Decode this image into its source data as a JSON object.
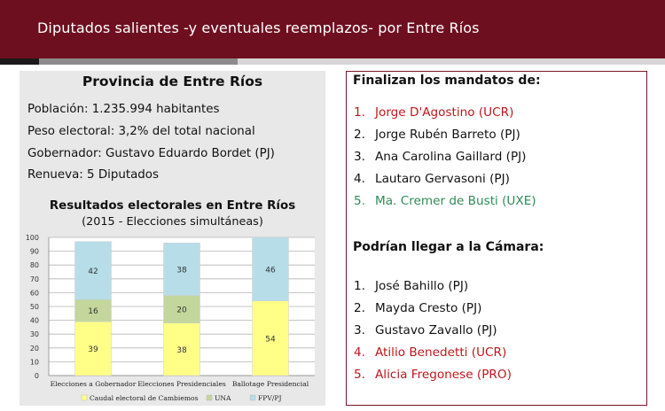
{
  "header": {
    "title": "Diputados salientes -y eventuales reemplazos- por Entre Ríos",
    "bg_color": "#6e0f1f"
  },
  "province": {
    "title": "Provincia de Entre Ríos",
    "lines": [
      "Población: 1.235.994 habitantes",
      "Peso electoral: 3,2% del total nacional",
      "Gobernador: Gustavo Eduardo Bordet (PJ)",
      "Renueva: 5 Diputados"
    ]
  },
  "chart_data": {
    "type": "bar",
    "stacked": true,
    "title": "Resultados electorales en Entre Ríos",
    "subtitle": "(2015 - Elecciones simultáneas)",
    "categories": [
      "Elecciones a Gobernador",
      "Elecciones Presidenciales",
      "Ballotage Presidencial"
    ],
    "series": [
      {
        "name": "Caudal electoral de Cambiemos",
        "values": [
          39,
          38,
          54
        ],
        "color": "#ffff88"
      },
      {
        "name": "UNA",
        "values": [
          16,
          20,
          0
        ],
        "color": "#c3d69b"
      },
      {
        "name": "FPV/PJ",
        "values": [
          42,
          38,
          46
        ],
        "color": "#b7dde8"
      }
    ],
    "data_labels": [
      [
        "39",
        "38",
        "54"
      ],
      [
        "16",
        "20",
        ""
      ],
      [
        "42",
        "38",
        "46"
      ]
    ],
    "ylim": [
      0,
      100
    ],
    "yticks": [
      "0",
      "10",
      "20",
      "30",
      "40",
      "50",
      "60",
      "70",
      "80",
      "90",
      "100"
    ],
    "legend_position": "bottom"
  },
  "mandates": {
    "heading": "Finalizan los mandatos de:",
    "items": [
      {
        "num": "1.",
        "name": "Jorge D'Agostino (UCR)",
        "color": "#c0161c"
      },
      {
        "num": "2.",
        "name": "Jorge Rubén Barreto (PJ)",
        "color": "#111111"
      },
      {
        "num": "3.",
        "name": "Ana Carolina Gaillard (PJ)",
        "color": "#111111"
      },
      {
        "num": "4.",
        "name": "Lautaro Gervasoni (PJ)",
        "color": "#111111"
      },
      {
        "num": "5.",
        "name": "Ma. Cremer de Busti (UXE)",
        "color": "#2e8b57"
      }
    ]
  },
  "candidates": {
    "heading": "Podrían llegar a la Cámara:",
    "items": [
      {
        "num": "1.",
        "name": "José Bahillo (PJ)",
        "color": "#111111"
      },
      {
        "num": "2.",
        "name": "Mayda Cresto (PJ)",
        "color": "#111111"
      },
      {
        "num": "3.",
        "name": "Gustavo Zavallo (PJ)",
        "color": "#111111"
      },
      {
        "num": "4.",
        "name": "Atilio Benedetti (UCR)",
        "color": "#c0161c"
      },
      {
        "num": "5.",
        "name": "Alicia Fregonese (PRO)",
        "color": "#c0161c"
      }
    ]
  }
}
